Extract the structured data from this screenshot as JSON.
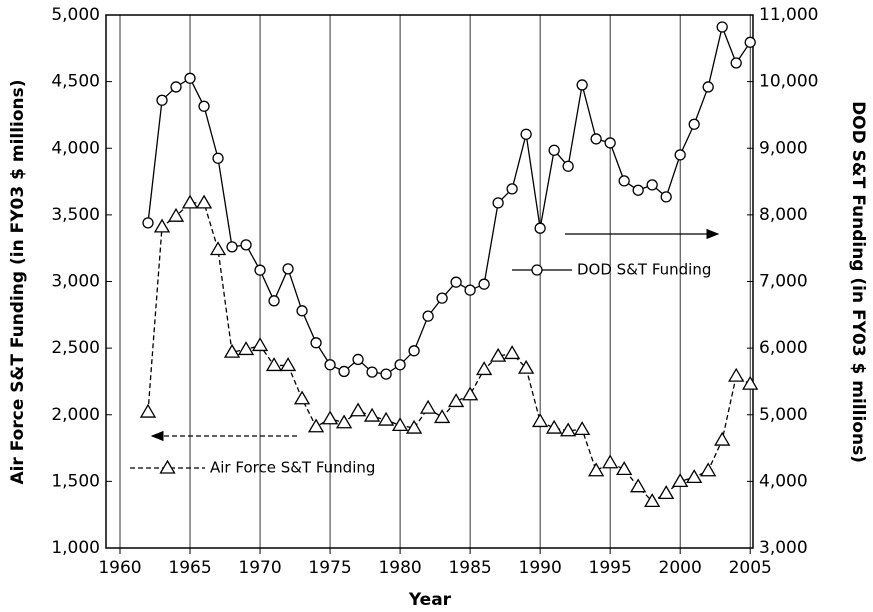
{
  "chart_data": {
    "type": "line",
    "x_label": "Year",
    "y_label": "Air Force S&T Funding (in FY03 $ millions)",
    "y2_label": "DOD S&T Funding (in FY03 $ millions)",
    "x": [
      1962,
      1963,
      1964,
      1965,
      1966,
      1967,
      1968,
      1969,
      1970,
      1971,
      1972,
      1973,
      1974,
      1975,
      1976,
      1977,
      1978,
      1979,
      1980,
      1981,
      1982,
      1983,
      1984,
      1985,
      1986,
      1987,
      1988,
      1989,
      1990,
      1991,
      1992,
      1993,
      1994,
      1995,
      1996,
      1997,
      1998,
      1999,
      2000,
      2001,
      2002,
      2003,
      2004,
      2005
    ],
    "series": [
      {
        "name": "Air Force S&T Funding",
        "color": "#000000",
        "marker": "triangle",
        "dashed": true,
        "values": [
          2020,
          3410,
          3490,
          3590,
          3590,
          3240,
          2470,
          2490,
          2520,
          2370,
          2370,
          2120,
          1910,
          1970,
          1940,
          2030,
          1990,
          1960,
          1920,
          1900,
          2050,
          1980,
          2100,
          2150,
          2340,
          2440,
          2460,
          2350,
          1950,
          1900,
          1880,
          1890,
          1580,
          1640,
          1590,
          1460,
          1350,
          1410,
          1500,
          1530,
          1580,
          1810,
          2290,
          2230
        ]
      },
      {
        "name": "DOD S&T Funding",
        "color": "#000000",
        "marker": "circle",
        "dashed": false,
        "axis": "y2",
        "values": [
          7880,
          9720,
          9920,
          10050,
          9630,
          8850,
          7520,
          7550,
          7170,
          6710,
          7190,
          6560,
          6080,
          5750,
          5650,
          5830,
          5640,
          5610,
          5750,
          5960,
          6480,
          6750,
          6990,
          6870,
          6960,
          8180,
          8390,
          9210,
          7800,
          8970,
          8730,
          9950,
          9140,
          9080,
          8510,
          8370,
          8450,
          8270,
          8900,
          9360,
          9920,
          10820,
          10280,
          10590
        ]
      }
    ],
    "xlim": [
      1959,
      2005.2
    ],
    "xticks": [
      1960,
      1965,
      1970,
      1975,
      1980,
      1985,
      1990,
      1995,
      2000,
      2005
    ],
    "ylim": [
      1000,
      5000
    ],
    "yticks": [
      {
        "value": 1000,
        "label": "1,000"
      },
      {
        "value": 1500,
        "label": "1,500"
      },
      {
        "value": 2000,
        "label": "2,000"
      },
      {
        "value": 2500,
        "label": "2,500"
      },
      {
        "value": 3000,
        "label": "3,000"
      },
      {
        "value": 3500,
        "label": "3,500"
      },
      {
        "value": 4000,
        "label": "4,000"
      },
      {
        "value": 4500,
        "label": "4,500"
      },
      {
        "value": 5000,
        "label": "5,000"
      }
    ],
    "y2lim": [
      3000,
      11000
    ],
    "y2ticks": [
      {
        "value": 3000,
        "label": "3,000"
      },
      {
        "value": 4000,
        "label": "4,000"
      },
      {
        "value": 5000,
        "label": "5,000"
      },
      {
        "value": 6000,
        "label": "6,000"
      },
      {
        "value": 7000,
        "label": "7,000"
      },
      {
        "value": 8000,
        "label": "8,000"
      },
      {
        "value": 9000,
        "label": "9,000"
      },
      {
        "value": 10000,
        "label": "10,000"
      },
      {
        "value": 11000,
        "label": "11,000"
      }
    ],
    "xgrid": true
  }
}
